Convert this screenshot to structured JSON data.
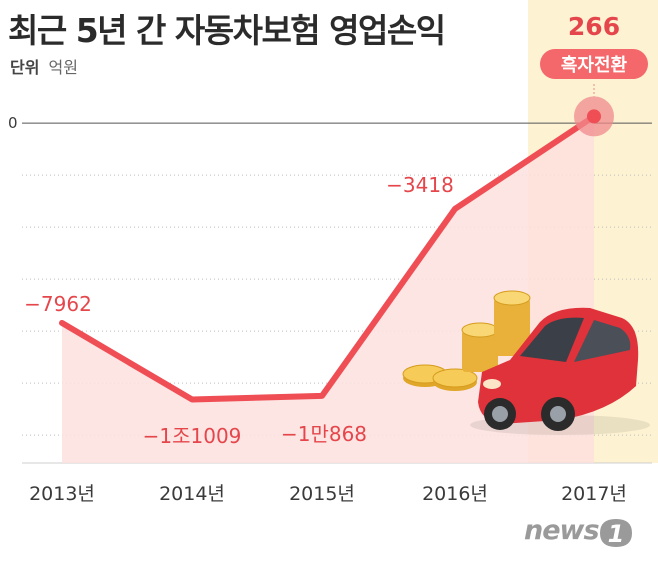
{
  "title": "최근 5년 간 자동차보험 영업손익",
  "unit_label": "단위",
  "unit_value": "억원",
  "logo_text": "news",
  "logo_mark_text": "1",
  "highlight_label": "흑자전환",
  "colors": {
    "line": "#ef4e55",
    "area": "#fde0de",
    "highlight_column": "#fdf2d2",
    "data_label": "#e5464b",
    "badge_fill": "#f4676a",
    "axis_text": "#3a3a3a"
  },
  "illustration": "red-car-and-coin-stacks",
  "chart_data": {
    "type": "area",
    "title": "최근 5년 간 자동차보험 영업손익",
    "xlabel": "",
    "ylabel": "",
    "categories": [
      "2013년",
      "2014년",
      "2015년",
      "2016년",
      "2017년"
    ],
    "values": [
      -7962,
      -11009,
      -10868,
      -3418,
      266
    ],
    "data_labels": [
      "−7962",
      "−1조1009",
      "−1만868",
      "−3418",
      "266"
    ],
    "y_ticks": [
      0
    ],
    "y_tick_labels": [
      "0"
    ],
    "ylim": [
      -13500,
      600
    ],
    "grid": true,
    "legend": "none",
    "highlight_index": 4
  }
}
